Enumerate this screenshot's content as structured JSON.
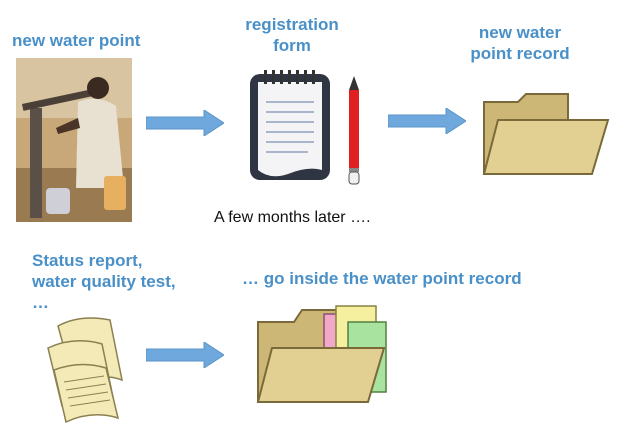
{
  "labels": {
    "new_water_point": "new water point",
    "registration_form_1": "registration",
    "registration_form_2": "form",
    "new_record_1": "new water",
    "new_record_2": "point record",
    "later": "A few months later ….",
    "status_1": "Status report,",
    "status_2": "water quality test,",
    "status_3": "…",
    "inside": "… go inside the water point record"
  },
  "colors": {
    "label_blue": "#4a90c8",
    "arrow_blue": "#6fa8dc",
    "folder_fill": "#d9c48a",
    "folder_stroke": "#7a6a3a"
  },
  "icons": {
    "photo": "water-pump-photo",
    "form": "notepad-icon",
    "pencil": "pencil-icon",
    "folder": "folder-icon",
    "papers": "papers-icon",
    "full_folder": "folder-with-documents-icon"
  }
}
